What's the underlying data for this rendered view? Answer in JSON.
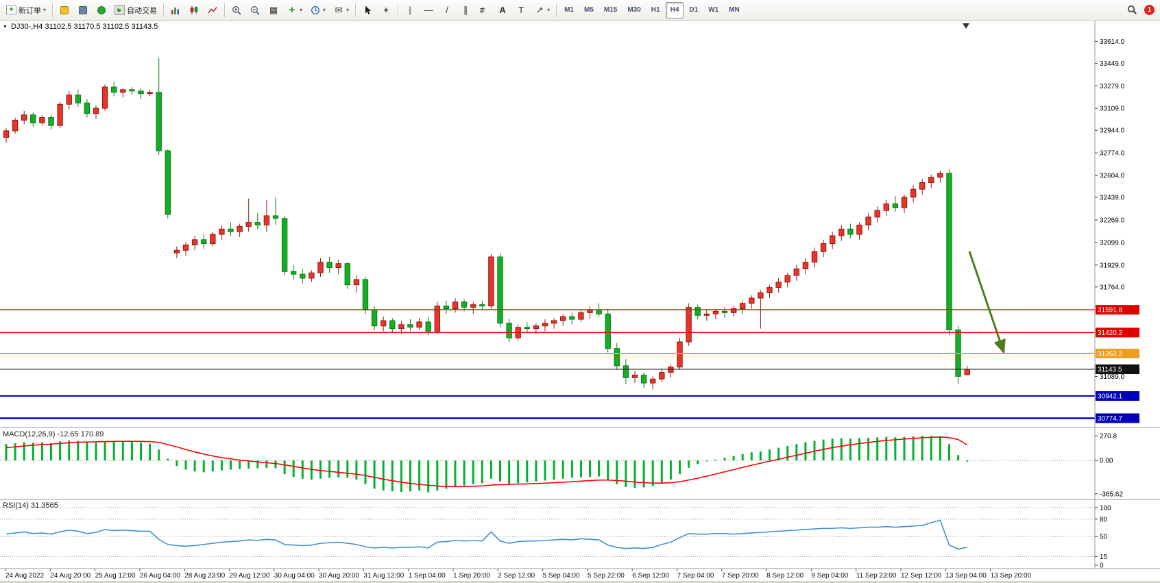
{
  "toolbar": {
    "new_order": "新订单",
    "autotrading": "自动交易",
    "timeframes": [
      "M1",
      "M5",
      "M15",
      "M30",
      "H1",
      "H4",
      "D1",
      "W1",
      "MN"
    ],
    "active_timeframe": "H4",
    "notification_count": "1"
  },
  "icons": {
    "caret_down": "▾",
    "plus": "+",
    "minus": "−",
    "play": "▶",
    "tiles": "▦",
    "envelope": "✉",
    "crosshair": "+",
    "vertical_line": "|",
    "horizontal_line": "—",
    "trendline": "/",
    "channel": "∥",
    "fibonacci": "≢",
    "text_tool": "A",
    "label_tool": "T",
    "arrows_tool": "↗",
    "collapse": "▼"
  },
  "chart": {
    "title": "DJ30-,H4 31102.5 31170.5 31102.5 31143.5",
    "symbol": "DJ30-",
    "period": "H4",
    "open": "31102.5",
    "high": "31170.5",
    "low": "31102.5",
    "close": "31143.5"
  },
  "colors": {
    "bull": "#e8352b",
    "bull_stroke": "#8f1b12",
    "bear": "#17ae27",
    "bear_stroke": "#0c7a18",
    "hline_red": "#fe0000",
    "hline_orange": "#efa136",
    "hline_black": "#151515",
    "hline_blue": "#0100ca",
    "tag_red": "#e00000",
    "tag_orange": "#ee9d20",
    "tag_black": "#111111",
    "tag_blue": "#0000bb",
    "macd_hist": "#00b22d",
    "macd_signal": "#fb0207",
    "rsi_line": "#4090d5",
    "arrow": "#4e7d1e",
    "axis_text": "#000000",
    "separator": "#9a9a9a"
  },
  "price_axis": {
    "ticks": [
      33614.0,
      33449.0,
      33279.0,
      33109.0,
      32944.0,
      32774.0,
      32604.0,
      32439.0,
      32269.0,
      32099.0,
      31929.0,
      31764.0,
      31089.0
    ]
  },
  "hlines": [
    {
      "price": 31591.8,
      "label": "31591.8",
      "style": "red",
      "width": 1.5
    },
    {
      "price": 31420.2,
      "label": "31420.2",
      "style": "red",
      "width": 1.5
    },
    {
      "price": 31262.2,
      "label": "31262.2",
      "style": "orange",
      "width": 2
    },
    {
      "price": 31143.5,
      "label": "31143.5",
      "style": "black",
      "width": 1
    },
    {
      "price": 30942.1,
      "label": "30942.1",
      "style": "blue",
      "width": 2
    },
    {
      "price": 30774.7,
      "label": "30774.7",
      "style": "blue",
      "width": 2.5
    }
  ],
  "macd": {
    "label": "MACD(12,26,9) -12.65 170.89",
    "ticks": [
      {
        "v": 270.8,
        "label": "270.8"
      },
      {
        "v": 0,
        "label": "0.00"
      },
      {
        "v": -365.62,
        "label": "-365.62"
      }
    ]
  },
  "rsi": {
    "label": "RSI(14) 31.3565",
    "ticks": [
      {
        "v": 100,
        "label": "100"
      },
      {
        "v": 80,
        "label": "80"
      },
      {
        "v": 50,
        "label": "50"
      },
      {
        "v": 15,
        "label": "15"
      },
      {
        "v": 0,
        "label": "0"
      }
    ]
  },
  "time_axis": {
    "labels": [
      "24 Aug 2022",
      "24 Aug 20:00",
      "25 Aug 12:00",
      "26 Aug 04:00",
      "28 Aug 23:00",
      "29 Aug 12:00",
      "30 Aug 04:00",
      "30 Aug 20:00",
      "31 Aug 12:00",
      "1 Sep 04:00",
      "1 Sep 20:00",
      "2 Sep 12:00",
      "5 Sep 04:00",
      "5 Sep 22:00",
      "6 Sep 12:00",
      "7 Sep 04:00",
      "7 Sep 20:00",
      "8 Sep 12:00",
      "9 Sep 04:00",
      "11 Sep 23:00",
      "12 Sep 12:00",
      "13 Sep 04:00",
      "13 Sep 20:00"
    ]
  },
  "chart_data": {
    "type": "candlestick",
    "symbol": "DJ30-",
    "timeframe": "H4",
    "visible_price_range": [
      30710,
      33750
    ],
    "candles": [
      [
        32890,
        32960,
        32850,
        32940
      ],
      [
        32940,
        33040,
        32920,
        33020
      ],
      [
        33020,
        33090,
        32990,
        33060
      ],
      [
        33060,
        33080,
        32970,
        33000
      ],
      [
        33000,
        33060,
        32980,
        33040
      ],
      [
        33040,
        33060,
        32950,
        32980
      ],
      [
        32980,
        33160,
        32960,
        33140
      ],
      [
        33140,
        33240,
        33100,
        33210
      ],
      [
        33210,
        33250,
        33120,
        33150
      ],
      [
        33150,
        33180,
        33040,
        33070
      ],
      [
        33070,
        33130,
        33030,
        33110
      ],
      [
        33110,
        33290,
        33090,
        33270
      ],
      [
        33270,
        33310,
        33200,
        33230
      ],
      [
        33230,
        33260,
        33190,
        33250
      ],
      [
        33250,
        33270,
        33210,
        33240
      ],
      [
        33240,
        33260,
        33180,
        33220
      ],
      [
        33220,
        33250,
        33200,
        33230
      ],
      [
        33230,
        33490,
        32760,
        32790
      ],
      [
        32790,
        32800,
        32280,
        32310
      ],
      [
        32020,
        32070,
        31980,
        32040
      ],
      [
        32040,
        32100,
        32000,
        32080
      ],
      [
        32080,
        32150,
        32040,
        32120
      ],
      [
        32120,
        32160,
        32050,
        32090
      ],
      [
        32090,
        32180,
        32070,
        32160
      ],
      [
        32160,
        32230,
        32120,
        32200
      ],
      [
        32200,
        32250,
        32150,
        32180
      ],
      [
        32180,
        32240,
        32140,
        32220
      ],
      [
        32220,
        32430,
        32180,
        32250
      ],
      [
        32250,
        32320,
        32200,
        32230
      ],
      [
        32230,
        32420,
        32180,
        32300
      ],
      [
        32300,
        32440,
        32230,
        32280
      ],
      [
        32280,
        32300,
        31850,
        31880
      ],
      [
        31880,
        31930,
        31820,
        31860
      ],
      [
        31860,
        31900,
        31790,
        31830
      ],
      [
        31830,
        31890,
        31800,
        31870
      ],
      [
        31870,
        31980,
        31840,
        31950
      ],
      [
        31950,
        31990,
        31870,
        31910
      ],
      [
        31910,
        31970,
        31860,
        31940
      ],
      [
        31940,
        31950,
        31750,
        31780
      ],
      [
        31780,
        31850,
        31720,
        31820
      ],
      [
        31820,
        31840,
        31560,
        31590
      ],
      [
        31590,
        31620,
        31440,
        31470
      ],
      [
        31470,
        31540,
        31430,
        31510
      ],
      [
        31510,
        31530,
        31420,
        31450
      ],
      [
        31450,
        31510,
        31410,
        31480
      ],
      [
        31480,
        31520,
        31430,
        31460
      ],
      [
        31460,
        31530,
        31440,
        31500
      ],
      [
        31500,
        31540,
        31400,
        31430
      ],
      [
        31430,
        31650,
        31410,
        31620
      ],
      [
        31620,
        31660,
        31560,
        31600
      ],
      [
        31600,
        31680,
        31570,
        31650
      ],
      [
        31650,
        31670,
        31580,
        31610
      ],
      [
        31610,
        31650,
        31560,
        31630
      ],
      [
        31630,
        31660,
        31590,
        31620
      ],
      [
        31620,
        32010,
        31600,
        31990
      ],
      [
        31990,
        32020,
        31460,
        31490
      ],
      [
        31490,
        31520,
        31350,
        31380
      ],
      [
        31380,
        31480,
        31360,
        31460
      ],
      [
        31460,
        31500,
        31420,
        31450
      ],
      [
        31450,
        31490,
        31410,
        31470
      ],
      [
        31470,
        31520,
        31430,
        31490
      ],
      [
        31490,
        31530,
        31450,
        31510
      ],
      [
        31510,
        31560,
        31470,
        31540
      ],
      [
        31540,
        31570,
        31480,
        31520
      ],
      [
        31520,
        31590,
        31500,
        31570
      ],
      [
        31570,
        31620,
        31520,
        31590
      ],
      [
        31590,
        31640,
        31540,
        31560
      ],
      [
        31560,
        31600,
        31270,
        31300
      ],
      [
        31300,
        31340,
        31140,
        31170
      ],
      [
        31170,
        31220,
        31030,
        31080
      ],
      [
        31080,
        31130,
        31040,
        31100
      ],
      [
        31100,
        31120,
        31000,
        31040
      ],
      [
        31040,
        31090,
        30990,
        31070
      ],
      [
        31070,
        31150,
        31050,
        31120
      ],
      [
        31120,
        31180,
        31080,
        31160
      ],
      [
        31160,
        31380,
        31140,
        31350
      ],
      [
        31350,
        31640,
        31320,
        31610
      ],
      [
        31610,
        31630,
        31520,
        31550
      ],
      [
        31550,
        31590,
        31510,
        31560
      ],
      [
        31560,
        31600,
        31520,
        31580
      ],
      [
        31580,
        31610,
        31530,
        31570
      ],
      [
        31570,
        31620,
        31540,
        31600
      ],
      [
        31600,
        31660,
        31560,
        31640
      ],
      [
        31640,
        31700,
        31600,
        31680
      ],
      [
        31680,
        31740,
        31450,
        31720
      ],
      [
        31720,
        31780,
        31680,
        31760
      ],
      [
        31760,
        31830,
        31720,
        31800
      ],
      [
        31800,
        31870,
        31760,
        31850
      ],
      [
        31850,
        31930,
        31810,
        31900
      ],
      [
        31900,
        31980,
        31860,
        31950
      ],
      [
        31950,
        32060,
        31910,
        32030
      ],
      [
        32030,
        32120,
        31990,
        32090
      ],
      [
        32090,
        32180,
        32050,
        32150
      ],
      [
        32150,
        32230,
        32110,
        32200
      ],
      [
        32200,
        32240,
        32130,
        32160
      ],
      [
        32160,
        32250,
        32120,
        32230
      ],
      [
        32230,
        32320,
        32190,
        32290
      ],
      [
        32290,
        32370,
        32250,
        32340
      ],
      [
        32340,
        32420,
        32300,
        32390
      ],
      [
        32390,
        32450,
        32330,
        32360
      ],
      [
        32360,
        32460,
        32320,
        32440
      ],
      [
        32440,
        32530,
        32400,
        32500
      ],
      [
        32500,
        32580,
        32460,
        32550
      ],
      [
        32550,
        32610,
        32510,
        32590
      ],
      [
        32590,
        32640,
        32550,
        32620
      ],
      [
        32620,
        32650,
        31400,
        31440
      ],
      [
        31440,
        31470,
        31030,
        31090
      ],
      [
        31102.5,
        31170.5,
        31102.5,
        31143.5
      ]
    ],
    "macd_histogram": [
      180,
      190,
      200,
      195,
      200,
      190,
      210,
      220,
      215,
      200,
      195,
      210,
      215,
      210,
      205,
      195,
      185,
      120,
      20,
      -60,
      -100,
      -120,
      -130,
      -120,
      -110,
      -100,
      -95,
      -90,
      -85,
      -80,
      -85,
      -150,
      -180,
      -200,
      -210,
      -200,
      -190,
      -185,
      -190,
      -210,
      -260,
      -310,
      -330,
      -340,
      -345,
      -340,
      -330,
      -350,
      -330,
      -310,
      -290,
      -275,
      -260,
      -250,
      -200,
      -230,
      -260,
      -250,
      -240,
      -230,
      -220,
      -210,
      -200,
      -190,
      -185,
      -180,
      -175,
      -220,
      -260,
      -290,
      -300,
      -295,
      -280,
      -250,
      -210,
      -150,
      -80,
      -40,
      -10,
      10,
      30,
      50,
      70,
      90,
      100,
      120,
      140,
      160,
      180,
      200,
      215,
      230,
      240,
      245,
      240,
      245,
      250,
      255,
      260,
      255,
      260,
      265,
      270,
      270,
      268,
      180,
      60,
      -12.65
    ],
    "macd_signal": [
      140,
      150,
      160,
      168,
      175,
      180,
      188,
      195,
      200,
      203,
      205,
      208,
      210,
      211,
      211,
      210,
      208,
      200,
      175,
      150,
      120,
      95,
      70,
      50,
      32,
      18,
      5,
      -5,
      -15,
      -25,
      -33,
      -48,
      -65,
      -82,
      -97,
      -110,
      -120,
      -130,
      -140,
      -150,
      -165,
      -185,
      -205,
      -222,
      -238,
      -252,
      -262,
      -272,
      -280,
      -285,
      -287,
      -286,
      -283,
      -279,
      -270,
      -265,
      -263,
      -260,
      -257,
      -253,
      -249,
      -244,
      -239,
      -233,
      -227,
      -221,
      -215,
      -215,
      -220,
      -228,
      -237,
      -244,
      -248,
      -248,
      -244,
      -233,
      -215,
      -195,
      -172,
      -148,
      -124,
      -100,
      -76,
      -52,
      -30,
      -8,
      14,
      36,
      58,
      80,
      102,
      122,
      142,
      158,
      172,
      186,
      198,
      210,
      220,
      228,
      236,
      243,
      250,
      255,
      258,
      252,
      230,
      170.89
    ],
    "rsi_values": [
      54,
      56,
      58,
      55,
      56,
      54,
      58,
      61,
      59,
      55,
      57,
      62,
      60,
      61,
      60,
      59,
      59,
      45,
      36,
      34,
      33,
      34,
      36,
      38,
      40,
      41,
      42,
      44,
      43,
      45,
      44,
      36,
      35,
      34,
      35,
      38,
      39,
      40,
      38,
      36,
      32,
      30,
      31,
      30,
      31,
      31,
      32,
      30,
      40,
      41,
      43,
      42,
      43,
      42,
      58,
      42,
      38,
      41,
      42,
      42,
      43,
      44,
      45,
      44,
      46,
      45,
      44,
      35,
      31,
      29,
      30,
      29,
      31,
      36,
      40,
      48,
      55,
      54,
      54,
      55,
      55,
      54,
      55,
      56,
      57,
      58,
      59,
      60,
      61,
      62,
      63,
      64,
      64,
      65,
      64,
      65,
      66,
      66,
      67,
      66,
      67,
      68,
      69,
      74,
      78,
      35,
      28,
      31.36
    ]
  }
}
